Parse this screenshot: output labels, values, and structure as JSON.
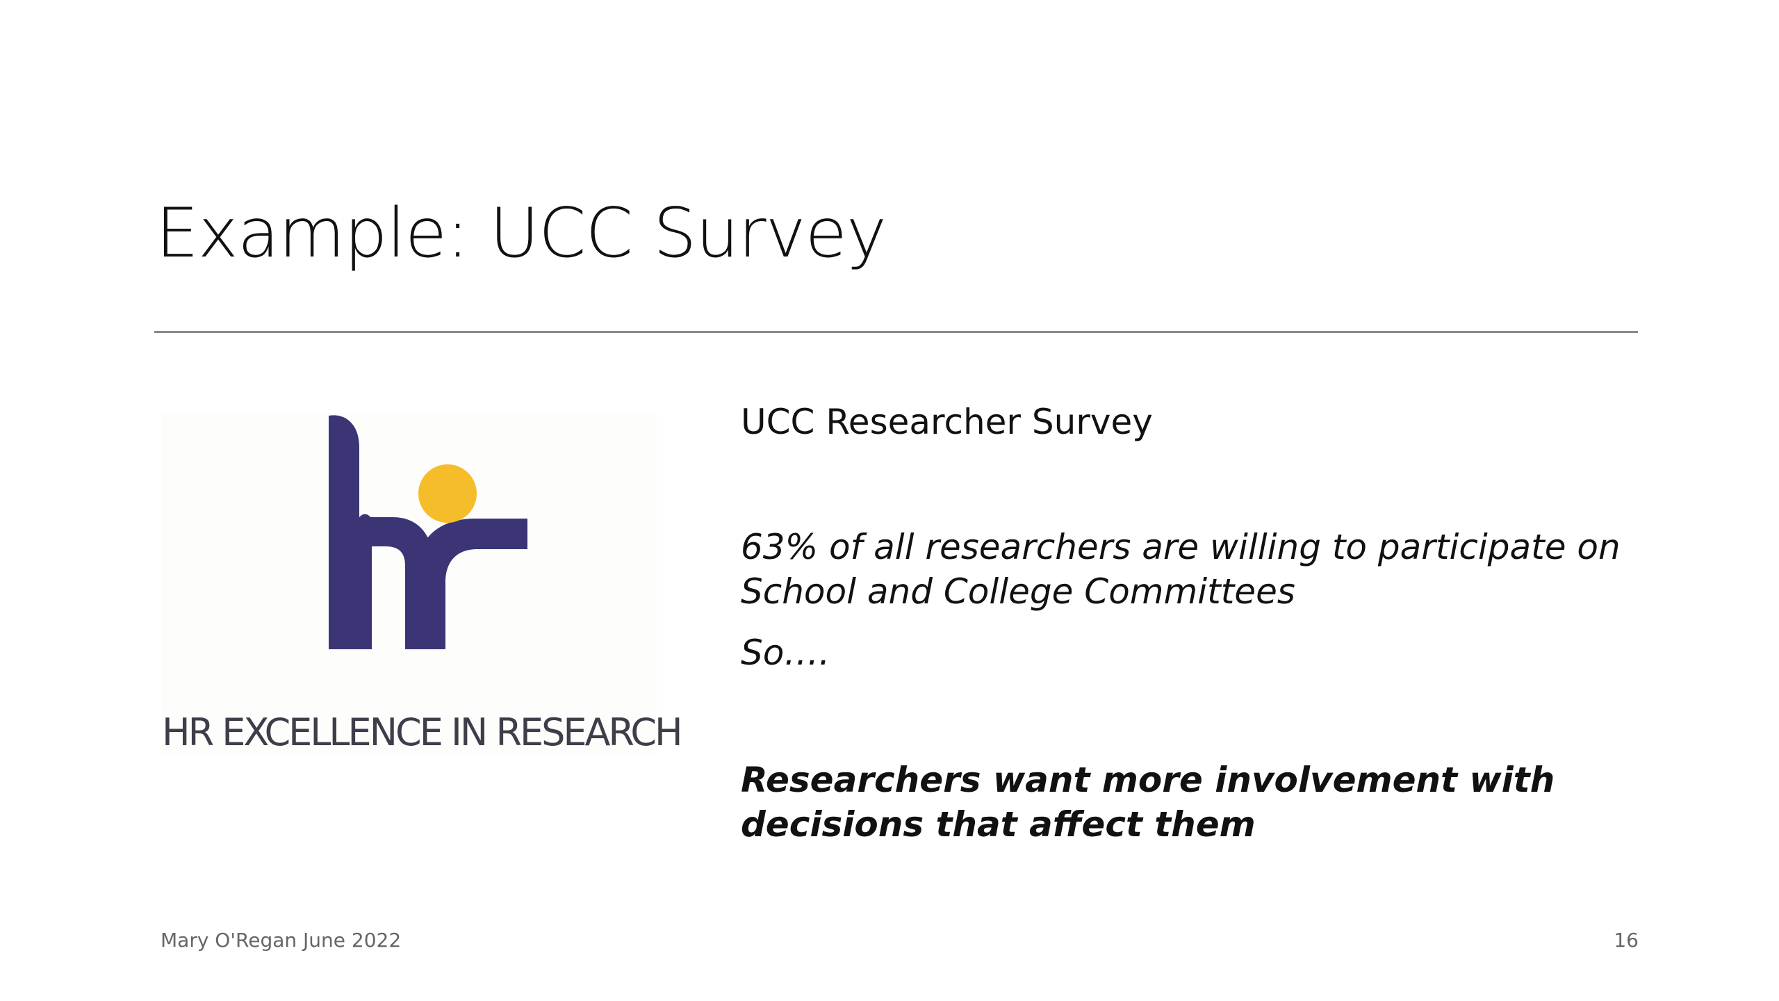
{
  "slide": {
    "title": "Example: UCC Survey",
    "logo": {
      "caption": "HR EXCELLENCE IN RESEARCH",
      "lettering": "hr",
      "colors": {
        "purple": "#3b3576",
        "yellow": "#f6bd2b",
        "caption": "#3e3e4a"
      }
    },
    "content": {
      "heading": "UCC Researcher Survey",
      "stat": "63% of all researchers are willing to participate on School and College Committees",
      "so": "So….",
      "conclusion": "Researchers want more involvement with decisions that affect them"
    },
    "footer": {
      "author_date": "Mary O'Regan June 2022",
      "page_number": "16"
    }
  }
}
